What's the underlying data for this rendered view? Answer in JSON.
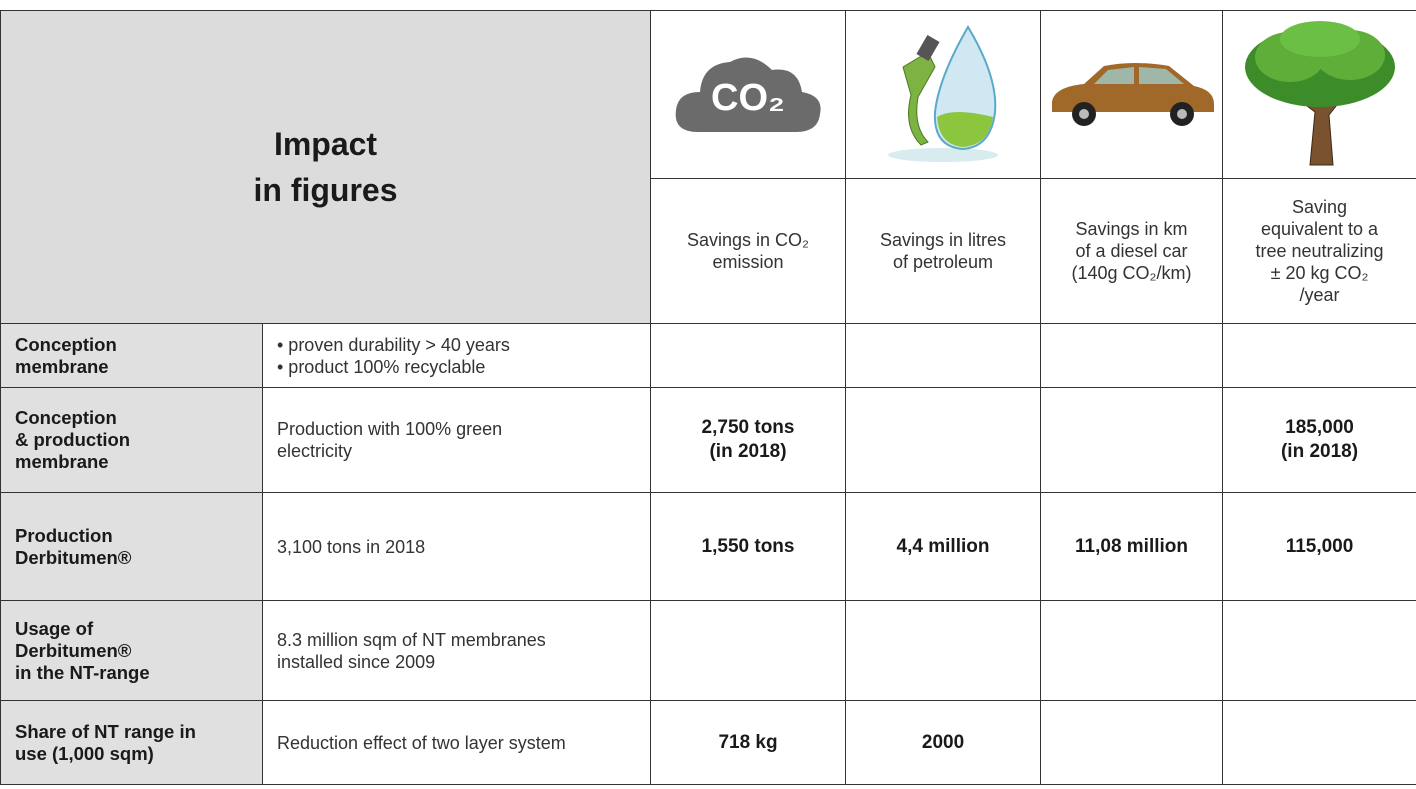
{
  "header": {
    "title_lines": [
      "Impact",
      "in figures"
    ],
    "co2_icon_label": "CO₂",
    "columns": [
      [
        "Savings in CO₂",
        "emission"
      ],
      [
        "Savings in litres",
        "of petroleum"
      ],
      [
        "Savings in km",
        "of a diesel car",
        "(140g CO₂/km)"
      ],
      [
        "Saving",
        "equivalent to a",
        "tree neutralizing",
        "± 20 kg CO₂",
        "/year"
      ]
    ]
  },
  "rows": [
    {
      "label": [
        "Conception",
        "membrane"
      ],
      "description": [
        "• proven durability > 40 years",
        "• product 100% recyclable"
      ],
      "values": [
        null,
        null,
        null,
        null
      ]
    },
    {
      "label": [
        "Conception",
        "& production",
        "membrane"
      ],
      "description": [
        "Production with 100% green",
        "electricity"
      ],
      "values": [
        [
          "2,750 tons",
          "(in 2018)"
        ],
        null,
        null,
        [
          "185,000",
          "(in 2018)"
        ]
      ]
    },
    {
      "label": [
        "Production",
        "Derbitumen®"
      ],
      "description": [
        "3,100 tons in 2018"
      ],
      "values": [
        [
          "1,550 tons"
        ],
        [
          "4,4 million"
        ],
        [
          "11,08 million"
        ],
        [
          "115,000"
        ]
      ]
    },
    {
      "label": [
        "Usage of",
        "Derbitumen®",
        "in the NT-range"
      ],
      "description": [
        "8.3 million sqm of NT membranes",
        "installed since 2009"
      ],
      "values": [
        null,
        null,
        null,
        null
      ]
    },
    {
      "label": [
        "Share of NT range in",
        "use (1,000 sqm)"
      ],
      "description": [
        "Reduction effect of two layer system"
      ],
      "values": [
        [
          "718 kg"
        ],
        [
          "2000"
        ],
        null,
        null
      ]
    }
  ]
}
